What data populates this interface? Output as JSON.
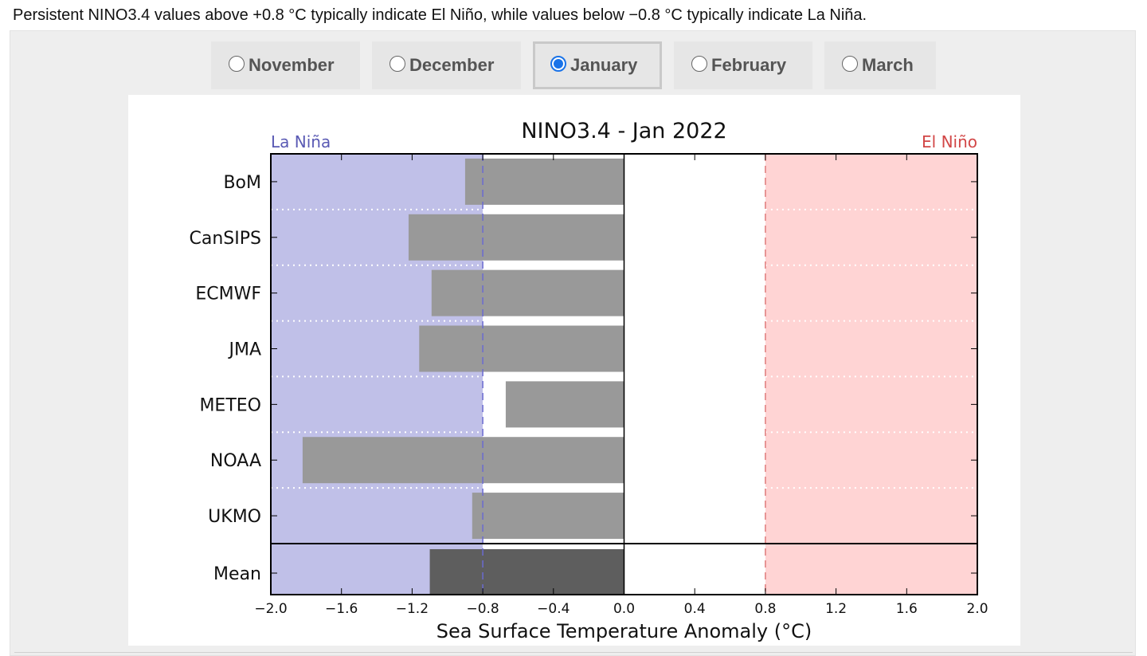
{
  "intro_text": "Persistent NINO3.4 values above +0.8 °C typically indicate El Niño, while values below −0.8 °C typically indicate La Niña.",
  "month_tabs": [
    {
      "label": "November",
      "selected": false
    },
    {
      "label": "December",
      "selected": false
    },
    {
      "label": "January",
      "selected": true
    },
    {
      "label": "February",
      "selected": false
    },
    {
      "label": "March",
      "selected": false
    }
  ],
  "colors": {
    "la_nina_fill": "#c0c0e8",
    "el_nino_fill": "#ffd4d4",
    "model_bar": "#999999",
    "mean_bar": "#5e5e5e",
    "la_nina_text": "#5a5ab4",
    "el_nino_text": "#d24646",
    "la_nina_line": "#6a6ad0",
    "el_nino_line": "#e07a7a",
    "selected_radio": "#1a73e8"
  },
  "chart_data": {
    "type": "bar",
    "orientation": "horizontal",
    "title": "NINO3.4 - Jan 2022",
    "xlabel": "Sea Surface Temperature Anomaly (°C)",
    "ylabel": "",
    "xlim": [
      -2.0,
      2.0
    ],
    "xticks": [
      -2.0,
      -1.6,
      -1.2,
      -0.8,
      -0.4,
      0.0,
      0.4,
      0.8,
      1.2,
      1.6,
      2.0
    ],
    "xtick_labels": [
      "−2.0",
      "−1.6",
      "−1.2",
      "−0.8",
      "−0.4",
      "0.0",
      "0.4",
      "0.8",
      "1.2",
      "1.6",
      "2.0"
    ],
    "categories": [
      "BoM",
      "CanSIPS",
      "ECMWF",
      "JMA",
      "METEO",
      "NOAA",
      "UKMO"
    ],
    "values": [
      -0.9,
      -1.22,
      -1.09,
      -1.16,
      -0.67,
      -1.82,
      -0.86
    ],
    "mean": {
      "label": "Mean",
      "value": -1.1
    },
    "thresholds": {
      "la_nina": -0.8,
      "el_nino": 0.8
    },
    "la_nina_label": "La Niña",
    "el_nino_label": "El Niño"
  }
}
